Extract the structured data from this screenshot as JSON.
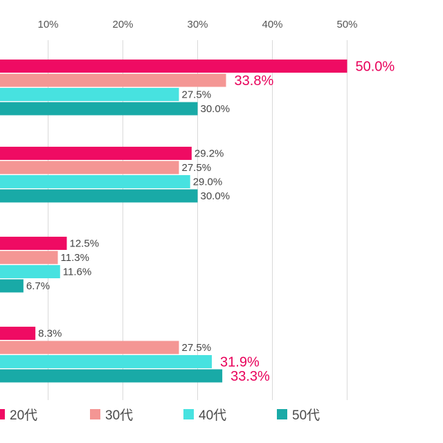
{
  "chart_data": {
    "type": "bar",
    "orientation": "horizontal",
    "xlim": [
      0,
      50
    ],
    "x_ticks": [
      {
        "value": 10,
        "label": "10%"
      },
      {
        "value": 20,
        "label": "20%"
      },
      {
        "value": 30,
        "label": "30%"
      },
      {
        "value": 40,
        "label": "40%"
      },
      {
        "value": 50,
        "label": "50%"
      }
    ],
    "grid": true,
    "legend_position": "bottom",
    "groups": 4,
    "series": [
      {
        "name": "20代",
        "color": "#ef0b63",
        "values": [
          50.0,
          29.2,
          12.5,
          8.3
        ],
        "labels": [
          "50.0%",
          "29.2%",
          "12.5%",
          "8.3%"
        ],
        "highlight": [
          true,
          false,
          false,
          false
        ]
      },
      {
        "name": "30代",
        "color": "#f49694",
        "values": [
          33.8,
          27.5,
          11.3,
          27.5
        ],
        "labels": [
          "33.8%",
          "27.5%",
          "11.3%",
          "27.5%"
        ],
        "highlight": [
          true,
          false,
          false,
          false
        ]
      },
      {
        "name": "40代",
        "color": "#47e2e0",
        "values": [
          27.5,
          29.0,
          11.6,
          31.9
        ],
        "labels": [
          "27.5%",
          "29.0%",
          "11.6%",
          "31.9%"
        ],
        "highlight": [
          false,
          false,
          false,
          true
        ]
      },
      {
        "name": "50代",
        "color": "#19aaa7",
        "values": [
          30.0,
          30.0,
          6.7,
          33.3
        ],
        "labels": [
          "30.0%",
          "30.0%",
          "6.7%",
          "33.3%"
        ],
        "highlight": [
          false,
          false,
          false,
          true
        ]
      }
    ]
  }
}
